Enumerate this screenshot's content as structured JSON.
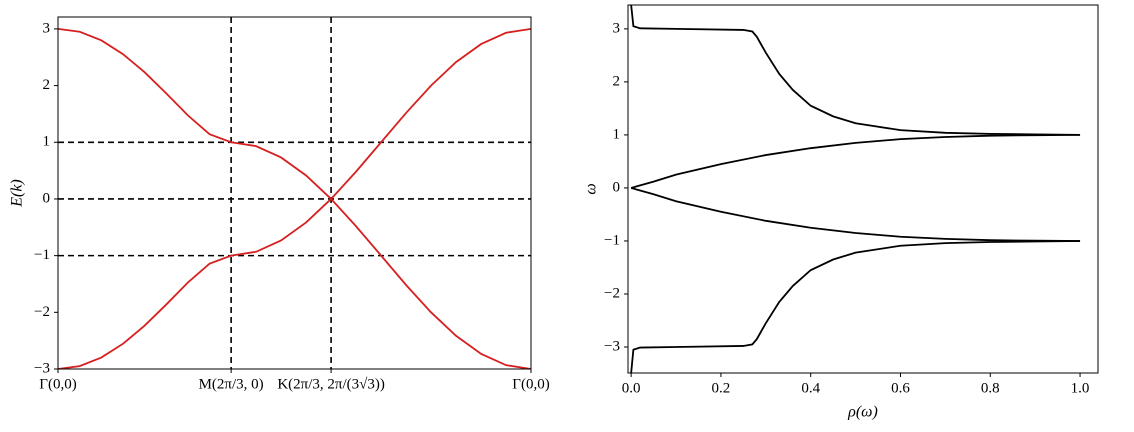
{
  "chart_data": [
    {
      "type": "line",
      "ylabel": "E(k)",
      "xlim": [
        0,
        5.721
      ],
      "ylim": [
        -3,
        3.21
      ],
      "xticks": [
        {
          "value": 0,
          "label": "Γ(0,0)"
        },
        {
          "value": 2.094,
          "label": "M(2π/3, 0)"
        },
        {
          "value": 3.303,
          "label": "K(2π/3, 2π/(3√3))"
        },
        {
          "value": 5.721,
          "label": "Γ(0,0)"
        }
      ],
      "yticks": [
        {
          "value": -3,
          "label": "−3"
        },
        {
          "value": -2,
          "label": "−2"
        },
        {
          "value": -1,
          "label": "−1"
        },
        0,
        1,
        2,
        3
      ],
      "hlines": [
        -1,
        0,
        1
      ],
      "vlines": [
        2.094,
        3.303
      ],
      "series": [
        {
          "color": "#d62020",
          "x": [
            0,
            0.262,
            0.524,
            0.785,
            1.047,
            1.309,
            1.571,
            1.833,
            2.094,
            2.396,
            2.698,
            3.001,
            3.303,
            3.605,
            3.908,
            4.21,
            4.512,
            4.814,
            5.117,
            5.419,
            5.721
          ],
          "values": [
            3,
            2.949,
            2.798,
            2.556,
            2.236,
            1.863,
            1.474,
            1.142,
            1,
            0.932,
            0.732,
            0.414,
            0,
            0.482,
            1,
            1.518,
            2,
            2.414,
            2.732,
            2.932,
            3
          ]
        },
        {
          "color": "#d62020",
          "x": [
            0,
            0.262,
            0.524,
            0.785,
            1.047,
            1.309,
            1.571,
            1.833,
            2.094,
            2.396,
            2.698,
            3.001,
            3.303,
            3.605,
            3.908,
            4.21,
            4.512,
            4.814,
            5.117,
            5.419,
            5.721
          ],
          "values": [
            -3,
            -2.949,
            -2.798,
            -2.556,
            -2.236,
            -1.863,
            -1.474,
            -1.142,
            -1,
            -0.932,
            -0.732,
            -0.414,
            0,
            -0.482,
            -1,
            -1.518,
            -2,
            -2.414,
            -2.732,
            -2.932,
            -3
          ]
        }
      ]
    },
    {
      "type": "line",
      "xlabel": "ρ(ω)",
      "ylabel": "ω",
      "xlim": [
        -0.007,
        1.04
      ],
      "ylim": [
        -3.49,
        3.45
      ],
      "xticks": [
        {
          "value": 0,
          "label": "0.0"
        },
        0.2,
        0.4,
        0.6,
        0.8,
        {
          "value": 1,
          "label": "1.0"
        }
      ],
      "yticks": [
        {
          "value": -3,
          "label": "−3"
        },
        {
          "value": -2,
          "label": "−2"
        },
        {
          "value": -1,
          "label": "−1"
        },
        0,
        1,
        2,
        3
      ],
      "series": [
        {
          "color": "#000000",
          "x": [
            0,
            0.005,
            0.02,
            0.1,
            0.25,
            0.27,
            0.28,
            0.3,
            0.33,
            0.36,
            0.4,
            0.45,
            0.5,
            0.6,
            0.7,
            0.8,
            0.9,
            1
          ],
          "values": [
            3.45,
            3.05,
            3.01,
            3,
            2.98,
            2.95,
            2.85,
            2.55,
            2.15,
            1.85,
            1.55,
            1.35,
            1.22,
            1.09,
            1.04,
            1.02,
            1.01,
            1
          ]
        },
        {
          "color": "#000000",
          "x": [
            0,
            0.05,
            0.1,
            0.2,
            0.3,
            0.4,
            0.5,
            0.6,
            0.7,
            0.8,
            0.9,
            1
          ],
          "values": [
            0,
            0.12,
            0.25,
            0.45,
            0.62,
            0.75,
            0.85,
            0.92,
            0.96,
            0.985,
            0.995,
            1
          ]
        },
        {
          "color": "#000000",
          "x": [
            0,
            0.05,
            0.1,
            0.2,
            0.3,
            0.4,
            0.5,
            0.6,
            0.7,
            0.8,
            0.9,
            1
          ],
          "values": [
            0,
            -0.12,
            -0.25,
            -0.45,
            -0.62,
            -0.75,
            -0.85,
            -0.92,
            -0.96,
            -0.985,
            -0.995,
            -1
          ]
        },
        {
          "color": "#000000",
          "x": [
            0,
            0.005,
            0.02,
            0.1,
            0.25,
            0.27,
            0.28,
            0.3,
            0.33,
            0.36,
            0.4,
            0.45,
            0.5,
            0.6,
            0.7,
            0.8,
            0.9,
            1
          ],
          "values": [
            -3.49,
            -3.05,
            -3.01,
            -3,
            -2.98,
            -2.95,
            -2.85,
            -2.55,
            -2.15,
            -1.85,
            -1.55,
            -1.35,
            -1.22,
            -1.09,
            -1.04,
            -1.02,
            -1.01,
            -1
          ]
        }
      ]
    }
  ]
}
